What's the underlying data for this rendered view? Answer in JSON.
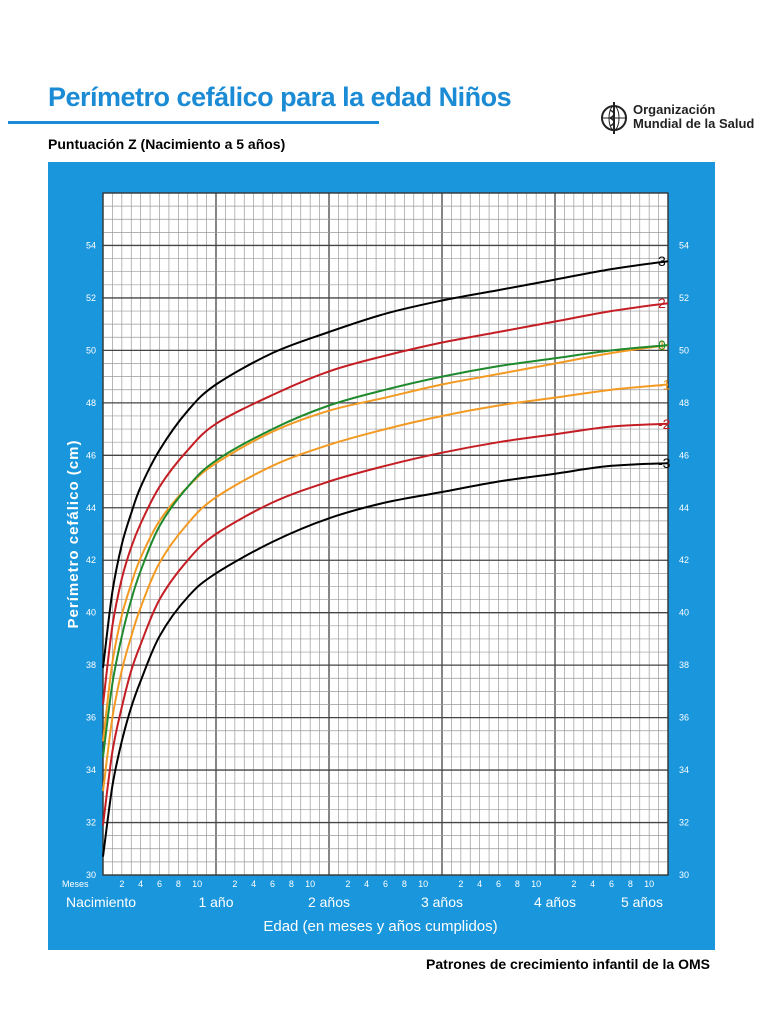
{
  "page": {
    "title": "Perímetro cefálico para la edad  Niños",
    "subtitle": "Puntuación Z (Nacimiento a 5 años)",
    "footer": "Patrones de crecimiento infantil de la OMS",
    "organization_line1": "Organización",
    "organization_line2": "Mundial de la Salud"
  },
  "colors": {
    "title": "#1a8bd4",
    "panel": "#1a96dc",
    "z3": "#000000",
    "z2": "#c41e24",
    "z1": "#f39a22",
    "z0": "#1f8a2d"
  },
  "chart_data": {
    "type": "line",
    "title": "",
    "xlabel": "Edad (en meses y años cumplidos)",
    "ylabel": "Perímetro cefálico (cm)",
    "xlim": [
      0,
      60
    ],
    "ylim": [
      30,
      56
    ],
    "yticks": [
      30,
      32,
      34,
      36,
      38,
      40,
      42,
      44,
      46,
      48,
      50,
      52,
      54
    ],
    "month_label_prefix": "Meses",
    "month_tick_labels": [
      "2",
      "4",
      "6",
      "8",
      "10"
    ],
    "year_labels": [
      {
        "month": 0,
        "label": "Nacimiento"
      },
      {
        "month": 12,
        "label": "1 año"
      },
      {
        "month": 24,
        "label": "2 años"
      },
      {
        "month": 36,
        "label": "3 años"
      },
      {
        "month": 48,
        "label": "4 años"
      },
      {
        "month": 60,
        "label": "5 años"
      }
    ],
    "grid": true,
    "x": [
      0,
      1,
      2,
      3,
      4,
      6,
      9,
      12,
      18,
      24,
      30,
      36,
      42,
      48,
      54,
      60
    ],
    "series": [
      {
        "name": "3",
        "color": "#000000",
        "values": [
          37.9,
          40.8,
          42.6,
          43.8,
          44.8,
          46.2,
          47.7,
          48.7,
          49.9,
          50.7,
          51.4,
          51.9,
          52.3,
          52.7,
          53.1,
          53.4
        ]
      },
      {
        "name": "2",
        "color": "#c41e24",
        "values": [
          36.5,
          39.5,
          41.3,
          42.5,
          43.4,
          44.8,
          46.2,
          47.2,
          48.3,
          49.2,
          49.8,
          50.3,
          50.7,
          51.1,
          51.5,
          51.8
        ]
      },
      {
        "name": "1",
        "color": "#f39a22",
        "values": [
          35.1,
          38.1,
          39.9,
          41.1,
          42.1,
          43.5,
          44.8,
          45.7,
          46.9,
          47.7,
          48.2,
          48.7,
          49.1,
          49.5,
          49.9,
          50.2
        ]
      },
      {
        "name": "0",
        "color": "#1f8a2d",
        "values": [
          34.5,
          37.3,
          39.1,
          40.5,
          41.6,
          43.3,
          44.8,
          45.8,
          47.0,
          47.9,
          48.5,
          49.0,
          49.4,
          49.7,
          50.0,
          50.2
        ]
      },
      {
        "name": "-1",
        "color": "#f39a22",
        "values": [
          33.2,
          36.0,
          37.8,
          39.1,
          40.2,
          41.9,
          43.4,
          44.4,
          45.6,
          46.4,
          47.0,
          47.5,
          47.9,
          48.2,
          48.5,
          48.7
        ]
      },
      {
        "name": "-2",
        "color": "#c41e24",
        "values": [
          31.9,
          34.7,
          36.4,
          37.8,
          38.8,
          40.5,
          42.0,
          43.0,
          44.2,
          45.0,
          45.6,
          46.1,
          46.5,
          46.8,
          47.1,
          47.2
        ]
      },
      {
        "name": "-3",
        "color": "#000000",
        "values": [
          30.7,
          33.4,
          35.1,
          36.4,
          37.4,
          39.1,
          40.6,
          41.5,
          42.7,
          43.6,
          44.2,
          44.6,
          45.0,
          45.3,
          45.6,
          45.7
        ]
      }
    ]
  }
}
